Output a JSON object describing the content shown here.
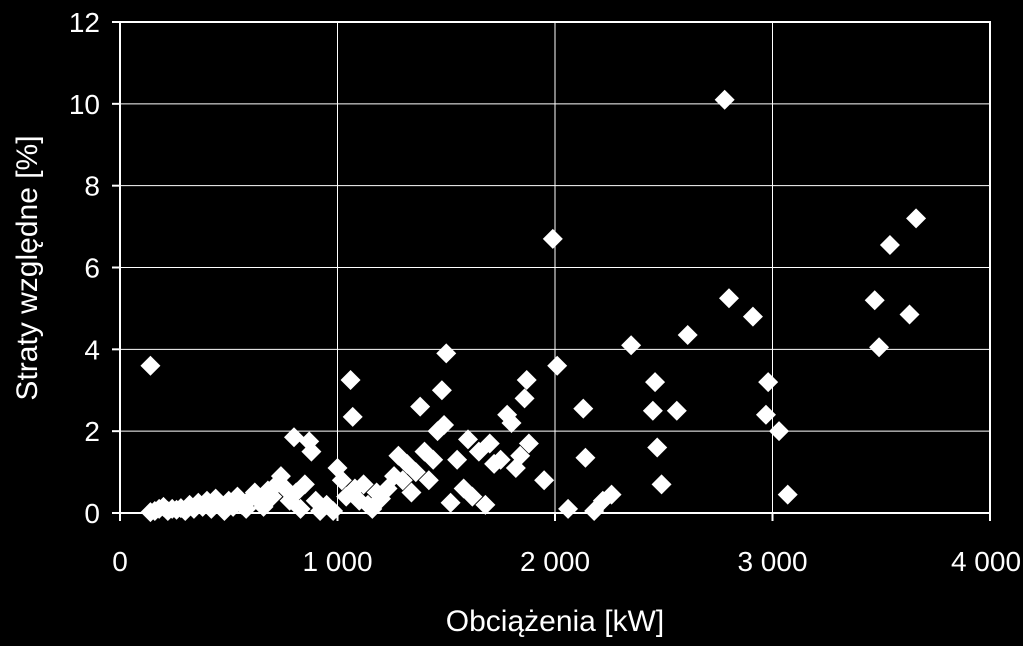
{
  "chart_data": {
    "type": "scatter",
    "xlabel": "Obciążenia [kW]",
    "ylabel": "Straty względne [%]",
    "xlim": [
      0,
      4000
    ],
    "ylim": [
      0,
      12
    ],
    "x_ticks": [
      0,
      1000,
      2000,
      3000,
      4000
    ],
    "x_tick_labels": [
      "0",
      "1 000",
      "2 000",
      "3 000",
      "4 000"
    ],
    "y_ticks": [
      0,
      2,
      4,
      6,
      8,
      10,
      12
    ],
    "y_tick_labels": [
      "0",
      "2",
      "4",
      "6",
      "8",
      "10",
      "12"
    ],
    "grid": true,
    "legend": "none",
    "colors": {
      "background": "#000000",
      "foreground": "#ffffff",
      "grid": "#ffffff",
      "marker": "#ffffff"
    },
    "marker": "diamond",
    "series": [
      {
        "points": [
          [
            140,
            3.6
          ],
          [
            140,
            0.02
          ],
          [
            160,
            0.05
          ],
          [
            180,
            0.1
          ],
          [
            200,
            0.15
          ],
          [
            220,
            0.05
          ],
          [
            240,
            0.1
          ],
          [
            260,
            0.08
          ],
          [
            280,
            0.12
          ],
          [
            300,
            0.05
          ],
          [
            320,
            0.2
          ],
          [
            340,
            0.1
          ],
          [
            360,
            0.25
          ],
          [
            380,
            0.15
          ],
          [
            400,
            0.3
          ],
          [
            420,
            0.1
          ],
          [
            440,
            0.35
          ],
          [
            460,
            0.2
          ],
          [
            480,
            0.05
          ],
          [
            500,
            0.3
          ],
          [
            520,
            0.15
          ],
          [
            540,
            0.4
          ],
          [
            560,
            0.2
          ],
          [
            580,
            0.1
          ],
          [
            600,
            0.35
          ],
          [
            620,
            0.5
          ],
          [
            640,
            0.3
          ],
          [
            660,
            0.15
          ],
          [
            680,
            0.55
          ],
          [
            700,
            0.4
          ],
          [
            720,
            0.7
          ],
          [
            740,
            0.9
          ],
          [
            760,
            0.6
          ],
          [
            780,
            0.3
          ],
          [
            800,
            1.85
          ],
          [
            810,
            0.5
          ],
          [
            830,
            0.1
          ],
          [
            850,
            0.7
          ],
          [
            870,
            1.75
          ],
          [
            880,
            1.5
          ],
          [
            900,
            0.3
          ],
          [
            920,
            0.05
          ],
          [
            950,
            0.2
          ],
          [
            980,
            0.05
          ],
          [
            1000,
            1.1
          ],
          [
            1020,
            0.8
          ],
          [
            1040,
            0.4
          ],
          [
            1060,
            3.25
          ],
          [
            1070,
            2.35
          ],
          [
            1080,
            0.6
          ],
          [
            1100,
            0.3
          ],
          [
            1120,
            0.7
          ],
          [
            1140,
            0.2
          ],
          [
            1160,
            0.1
          ],
          [
            1180,
            0.5
          ],
          [
            1200,
            0.35
          ],
          [
            1230,
            0.6
          ],
          [
            1260,
            0.9
          ],
          [
            1280,
            1.4
          ],
          [
            1300,
            0.8
          ],
          [
            1320,
            1.2
          ],
          [
            1340,
            0.5
          ],
          [
            1360,
            1.0
          ],
          [
            1380,
            2.6
          ],
          [
            1400,
            1.5
          ],
          [
            1420,
            0.8
          ],
          [
            1440,
            1.3
          ],
          [
            1460,
            2.0
          ],
          [
            1480,
            3.0
          ],
          [
            1490,
            2.15
          ],
          [
            1500,
            3.9
          ],
          [
            1520,
            0.25
          ],
          [
            1550,
            1.3
          ],
          [
            1580,
            0.6
          ],
          [
            1600,
            1.8
          ],
          [
            1620,
            0.4
          ],
          [
            1650,
            1.5
          ],
          [
            1680,
            0.2
          ],
          [
            1700,
            1.7
          ],
          [
            1720,
            1.2
          ],
          [
            1750,
            1.3
          ],
          [
            1780,
            2.4
          ],
          [
            1800,
            2.2
          ],
          [
            1820,
            1.1
          ],
          [
            1840,
            1.4
          ],
          [
            1860,
            2.8
          ],
          [
            1870,
            3.25
          ],
          [
            1880,
            1.7
          ],
          [
            1950,
            0.8
          ],
          [
            1990,
            6.7
          ],
          [
            2010,
            3.6
          ],
          [
            2060,
            0.1
          ],
          [
            2130,
            2.55
          ],
          [
            2140,
            1.35
          ],
          [
            2180,
            0.05
          ],
          [
            2220,
            0.3
          ],
          [
            2260,
            0.45
          ],
          [
            2350,
            4.1
          ],
          [
            2450,
            2.5
          ],
          [
            2460,
            3.2
          ],
          [
            2470,
            1.6
          ],
          [
            2490,
            0.7
          ],
          [
            2560,
            2.5
          ],
          [
            2610,
            4.35
          ],
          [
            2780,
            10.1
          ],
          [
            2800,
            5.25
          ],
          [
            2910,
            4.8
          ],
          [
            2970,
            2.4
          ],
          [
            2980,
            3.2
          ],
          [
            3030,
            2.0
          ],
          [
            3070,
            0.45
          ],
          [
            3470,
            5.2
          ],
          [
            3490,
            4.05
          ],
          [
            3540,
            6.55
          ],
          [
            3630,
            4.85
          ],
          [
            3660,
            7.2
          ]
        ]
      }
    ]
  }
}
